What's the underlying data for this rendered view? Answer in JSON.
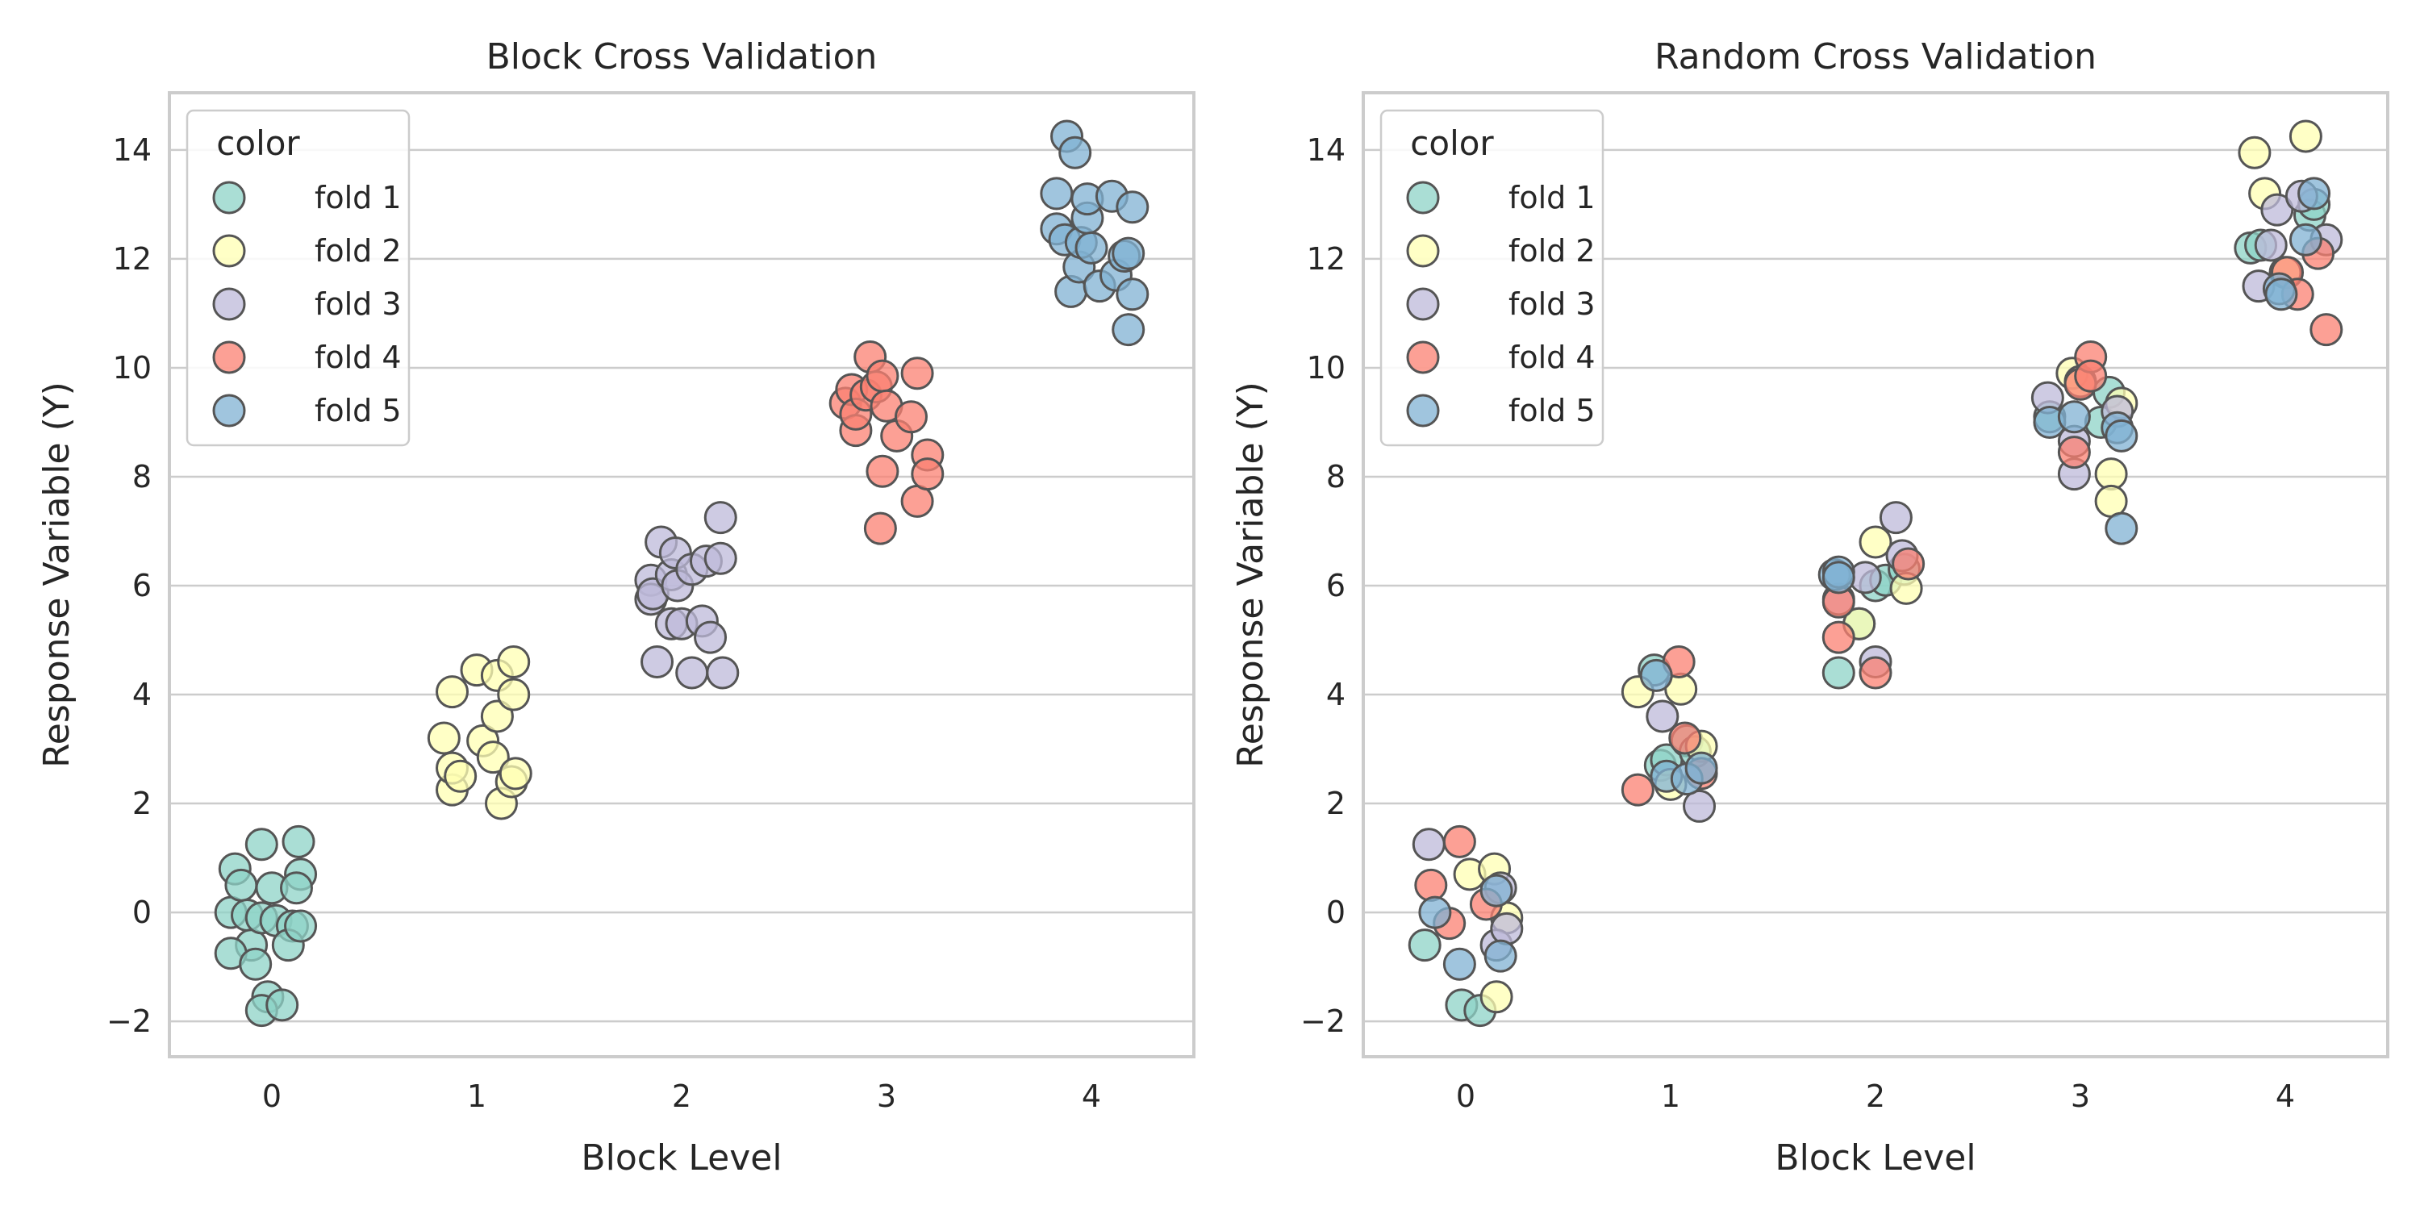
{
  "chart_data": [
    {
      "type": "scatter",
      "title": "Block Cross Validation",
      "xlabel": "Block Level",
      "ylabel": "Response Variable (Y)",
      "xlim": [
        -0.5,
        4.5
      ],
      "ylim": [
        -2.65,
        15.05
      ],
      "x_ticks": [
        0,
        1,
        2,
        3,
        4
      ],
      "y_ticks": [
        -2,
        0,
        2,
        4,
        6,
        8,
        10,
        12,
        14
      ],
      "grid": "horizontal",
      "legend_title": "color",
      "legend_position": "upper-left",
      "series": [
        {
          "name": "fold 1",
          "color": "#8dd3c7",
          "points": [
            [
              -0.2,
              0.0
            ],
            [
              -0.18,
              0.8
            ],
            [
              -0.15,
              0.5
            ],
            [
              -0.12,
              -0.05
            ],
            [
              -0.1,
              -0.6
            ],
            [
              -0.05,
              1.25
            ],
            [
              -0.05,
              -0.1
            ],
            [
              0.0,
              0.45
            ],
            [
              0.02,
              -0.15
            ],
            [
              0.1,
              -0.25
            ],
            [
              0.14,
              0.7
            ],
            [
              0.13,
              1.3
            ],
            [
              0.12,
              0.45
            ],
            [
              0.08,
              -0.6
            ],
            [
              0.14,
              -0.25
            ],
            [
              -0.2,
              -0.75
            ],
            [
              -0.08,
              -0.95
            ],
            [
              -0.02,
              -1.55
            ],
            [
              -0.05,
              -1.8
            ],
            [
              0.05,
              -1.7
            ]
          ]
        },
        {
          "name": "fold 2",
          "color": "#ffffb3",
          "points": [
            [
              0.84,
              3.2
            ],
            [
              0.88,
              4.05
            ],
            [
              0.88,
              2.25
            ],
            [
              0.88,
              2.65
            ],
            [
              0.92,
              2.5
            ],
            [
              1.0,
              4.45
            ],
            [
              1.03,
              3.15
            ],
            [
              1.08,
              2.85
            ],
            [
              1.1,
              3.6
            ],
            [
              1.1,
              4.35
            ],
            [
              1.12,
              2.0
            ],
            [
              1.18,
              4.0
            ],
            [
              1.18,
              4.6
            ],
            [
              1.17,
              2.4
            ],
            [
              1.19,
              2.55
            ]
          ]
        },
        {
          "name": "fold 3",
          "color": "#bebada",
          "points": [
            [
              1.85,
              6.1
            ],
            [
              1.85,
              5.75
            ],
            [
              1.86,
              5.85
            ],
            [
              1.88,
              4.6
            ],
            [
              1.9,
              6.8
            ],
            [
              1.95,
              6.2
            ],
            [
              1.95,
              5.3
            ],
            [
              1.97,
              6.6
            ],
            [
              1.98,
              6.0
            ],
            [
              2.0,
              5.3
            ],
            [
              2.05,
              6.3
            ],
            [
              2.05,
              4.4
            ],
            [
              2.1,
              5.35
            ],
            [
              2.12,
              6.45
            ],
            [
              2.14,
              5.05
            ],
            [
              2.19,
              7.25
            ],
            [
              2.19,
              6.5
            ],
            [
              2.2,
              4.4
            ]
          ]
        },
        {
          "name": "fold 4",
          "color": "#fb8072",
          "points": [
            [
              2.8,
              9.35
            ],
            [
              2.83,
              9.6
            ],
            [
              2.85,
              8.85
            ],
            [
              2.85,
              9.15
            ],
            [
              2.9,
              9.5
            ],
            [
              2.92,
              10.2
            ],
            [
              2.95,
              9.65
            ],
            [
              2.98,
              9.85
            ],
            [
              2.97,
              7.05
            ],
            [
              2.98,
              8.1
            ],
            [
              3.0,
              9.3
            ],
            [
              3.05,
              8.75
            ],
            [
              3.12,
              9.1
            ],
            [
              3.15,
              9.9
            ],
            [
              3.15,
              7.55
            ],
            [
              3.2,
              8.4
            ],
            [
              3.2,
              8.05
            ]
          ]
        },
        {
          "name": "fold 5",
          "color": "#80b1d3",
          "points": [
            [
              3.83,
              13.2
            ],
            [
              3.83,
              12.55
            ],
            [
              3.88,
              14.25
            ],
            [
              3.87,
              12.35
            ],
            [
              3.9,
              11.4
            ],
            [
              3.92,
              13.95
            ],
            [
              3.94,
              11.85
            ],
            [
              3.95,
              12.3
            ],
            [
              3.98,
              12.75
            ],
            [
              3.98,
              13.1
            ],
            [
              4.0,
              12.2
            ],
            [
              4.04,
              11.5
            ],
            [
              4.1,
              13.15
            ],
            [
              4.12,
              11.7
            ],
            [
              4.16,
              12.05
            ],
            [
              4.18,
              12.1
            ],
            [
              4.18,
              10.7
            ],
            [
              4.2,
              12.95
            ],
            [
              4.2,
              11.35
            ]
          ]
        }
      ]
    },
    {
      "type": "scatter",
      "title": "Random Cross Validation",
      "xlabel": "Block Level",
      "ylabel": "Response Variable (Y)",
      "xlim": [
        -0.5,
        4.5
      ],
      "ylim": [
        -2.65,
        15.05
      ],
      "x_ticks": [
        0,
        1,
        2,
        3,
        4
      ],
      "y_ticks": [
        -2,
        0,
        2,
        4,
        6,
        8,
        10,
        12,
        14
      ],
      "grid": "horizontal",
      "legend_title": "color",
      "legend_position": "upper-left",
      "series": [
        {
          "name": "fold 1",
          "color": "#8dd3c7",
          "points": [
            [
              -0.2,
              -0.6
            ],
            [
              -0.02,
              -1.7
            ],
            [
              0.07,
              -1.8
            ],
            [
              0.92,
              4.45
            ],
            [
              0.95,
              2.7
            ],
            [
              0.98,
              2.8
            ],
            [
              1.08,
              3.15
            ],
            [
              1.12,
              2.95
            ],
            [
              1.82,
              4.4
            ],
            [
              1.92,
              5.3
            ],
            [
              2.0,
              6.0
            ],
            [
              2.05,
              6.1
            ],
            [
              2.14,
              6.3
            ],
            [
              2.85,
              9.1
            ],
            [
              3.1,
              9.0
            ],
            [
              3.14,
              9.55
            ],
            [
              3.83,
              12.2
            ],
            [
              3.88,
              12.25
            ],
            [
              4.12,
              12.8
            ],
            [
              4.14,
              13.0
            ]
          ]
        },
        {
          "name": "fold 2",
          "color": "#ffffb3",
          "points": [
            [
              0.02,
              0.7
            ],
            [
              0.14,
              0.8
            ],
            [
              0.15,
              -1.55
            ],
            [
              0.2,
              -0.1
            ],
            [
              0.84,
              4.05
            ],
            [
              1.0,
              2.35
            ],
            [
              1.05,
              4.1
            ],
            [
              1.15,
              3.05
            ],
            [
              1.92,
              5.3
            ],
            [
              2.0,
              6.8
            ],
            [
              2.15,
              5.95
            ],
            [
              2.96,
              9.9
            ],
            [
              3.0,
              9.75
            ],
            [
              3.2,
              9.35
            ],
            [
              3.15,
              8.05
            ],
            [
              3.15,
              7.55
            ],
            [
              3.85,
              13.95
            ],
            [
              3.9,
              13.2
            ],
            [
              4.0,
              11.75
            ],
            [
              4.1,
              14.25
            ]
          ]
        },
        {
          "name": "fold 3",
          "color": "#bebada",
          "points": [
            [
              -0.18,
              1.25
            ],
            [
              0.15,
              -0.6
            ],
            [
              0.17,
              0.45
            ],
            [
              0.2,
              -0.3
            ],
            [
              0.96,
              3.6
            ],
            [
              1.14,
              1.95
            ],
            [
              1.82,
              5.75
            ],
            [
              1.95,
              6.15
            ],
            [
              2.0,
              4.6
            ],
            [
              2.1,
              7.25
            ],
            [
              2.13,
              6.55
            ],
            [
              2.84,
              9.45
            ],
            [
              2.97,
              8.65
            ],
            [
              2.97,
              8.05
            ],
            [
              3.18,
              9.2
            ],
            [
              3.87,
              11.5
            ],
            [
              3.93,
              12.25
            ],
            [
              3.96,
              12.9
            ],
            [
              4.08,
              13.15
            ],
            [
              4.2,
              12.35
            ]
          ]
        },
        {
          "name": "fold 4",
          "color": "#fb8072",
          "points": [
            [
              -0.17,
              0.5
            ],
            [
              -0.08,
              -0.2
            ],
            [
              -0.03,
              1.3
            ],
            [
              0.1,
              0.15
            ],
            [
              0.84,
              2.25
            ],
            [
              1.04,
              4.6
            ],
            [
              1.07,
              3.2
            ],
            [
              1.15,
              2.55
            ],
            [
              1.82,
              5.05
            ],
            [
              1.82,
              5.7
            ],
            [
              2.0,
              4.4
            ],
            [
              2.16,
              6.4
            ],
            [
              2.97,
              8.45
            ],
            [
              3.0,
              9.7
            ],
            [
              3.05,
              10.2
            ],
            [
              3.05,
              9.85
            ],
            [
              4.01,
              11.75
            ],
            [
              4.06,
              11.35
            ],
            [
              4.16,
              12.1
            ],
            [
              4.2,
              10.7
            ]
          ]
        },
        {
          "name": "fold 5",
          "color": "#80b1d3",
          "points": [
            [
              -0.15,
              0.0
            ],
            [
              -0.03,
              -0.95
            ],
            [
              0.15,
              0.4
            ],
            [
              0.17,
              -0.8
            ],
            [
              0.93,
              4.35
            ],
            [
              0.98,
              2.5
            ],
            [
              1.08,
              2.45
            ],
            [
              1.15,
              2.65
            ],
            [
              1.8,
              6.2
            ],
            [
              1.82,
              6.25
            ],
            [
              1.82,
              6.15
            ],
            [
              2.85,
              9.0
            ],
            [
              2.97,
              9.1
            ],
            [
              3.18,
              8.9
            ],
            [
              3.2,
              8.75
            ],
            [
              3.2,
              7.05
            ],
            [
              3.97,
              11.45
            ],
            [
              3.98,
              11.35
            ],
            [
              4.1,
              12.35
            ],
            [
              4.14,
              13.2
            ]
          ]
        }
      ]
    }
  ]
}
